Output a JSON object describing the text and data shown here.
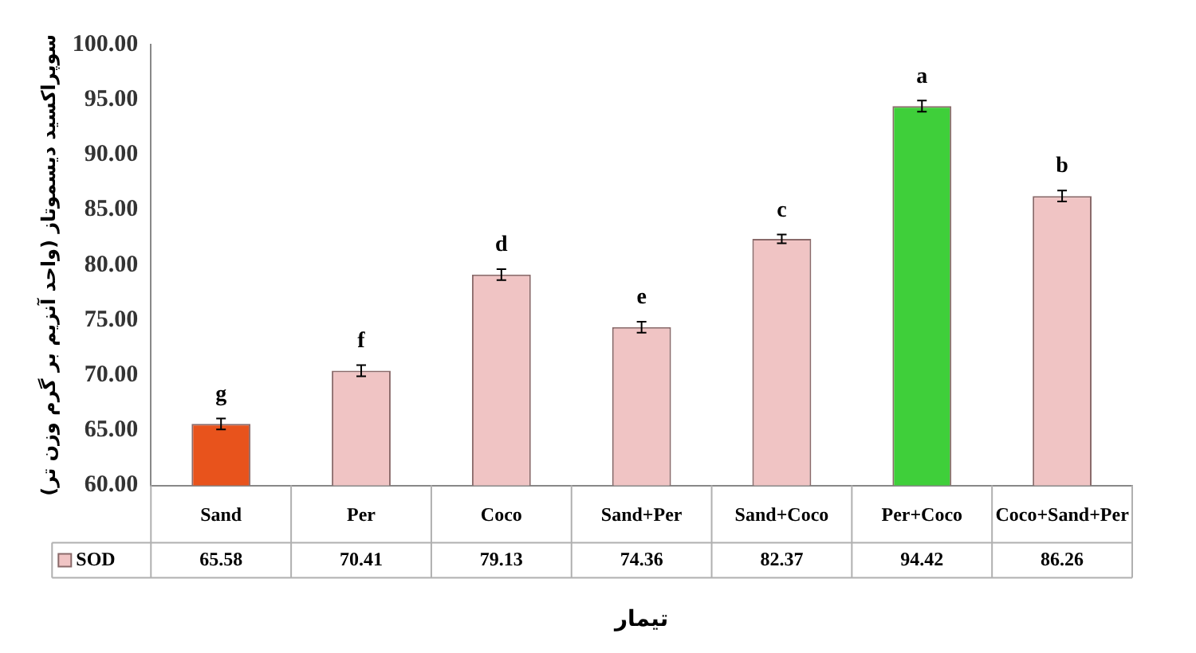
{
  "chart_data": {
    "type": "bar",
    "ylabel": "سوپراکسید دیسموتاز (واحد آنزیم بر گرم وزن تر)",
    "xlabel": "تیمار",
    "categories": [
      "Sand",
      "Per",
      "Coco",
      "Sand+Per",
      "Sand+Coco",
      "Per+Coco",
      "Coco+Sand+Per"
    ],
    "series": [
      {
        "name": "SOD",
        "color": "#f0c4c4",
        "colors": [
          "#e8531c",
          "#f0c4c4",
          "#f0c4c4",
          "#f0c4c4",
          "#f0c4c4",
          "#3fcf3a",
          "#f0c4c4"
        ],
        "values": [
          65.58,
          70.41,
          79.13,
          74.36,
          82.37,
          94.42,
          86.26
        ],
        "errors": [
          0.5,
          0.5,
          0.5,
          0.5,
          0.4,
          0.5,
          0.5
        ]
      }
    ],
    "ylim": [
      60,
      100
    ],
    "yticks": [
      {
        "value": 60,
        "label": "60.00"
      },
      {
        "value": 65,
        "label": "65.00"
      },
      {
        "value": 70,
        "label": "70.00"
      },
      {
        "value": 75,
        "label": "75.00"
      },
      {
        "value": 80,
        "label": "80.00"
      },
      {
        "value": 85,
        "label": "85.00"
      },
      {
        "value": 90,
        "label": "90.00"
      },
      {
        "value": 95,
        "label": "95.00"
      },
      {
        "value": 100,
        "label": "100.00"
      }
    ],
    "data_labels": true,
    "grid": false,
    "legend": "bottom left",
    "annotations": [
      {
        "text": "g",
        "x": "Sand",
        "y": 66.08
      },
      {
        "text": "f",
        "x": "Per",
        "y": 70.91
      },
      {
        "text": "d",
        "x": "Coco",
        "y": 79.63
      },
      {
        "text": "e",
        "x": "Sand+Per",
        "y": 74.86
      },
      {
        "text": "c",
        "x": "Sand+Coco",
        "y": 82.77
      },
      {
        "text": "a",
        "x": "Per+Coco",
        "y": 94.92
      },
      {
        "text": "b",
        "x": "Coco+Sand+Per",
        "y": 86.76
      }
    ]
  }
}
